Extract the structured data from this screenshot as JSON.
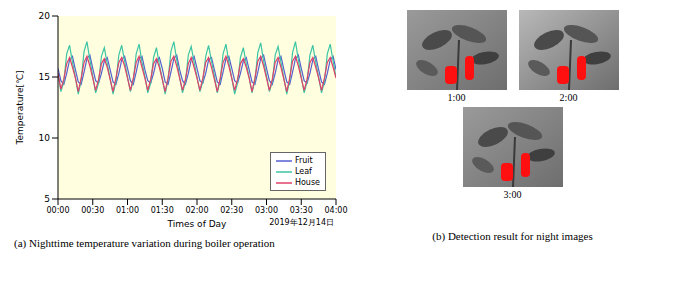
{
  "chart_data": {
    "type": "line",
    "xlabel": "Times of Day",
    "ylabel": "Temperature[℃]",
    "annotation": "2019年12月14日",
    "caption": "(a) Nighttime temperature variation during boiler operation",
    "x": [
      0,
      2.5,
      5,
      7.5,
      10,
      12.5,
      15,
      17.5,
      20,
      22.5,
      25,
      27.5,
      30,
      32.5,
      35,
      37.5,
      40,
      42.5,
      45,
      47.5,
      50,
      52.5,
      55,
      57.5,
      60,
      62.5,
      65,
      67.5,
      70,
      72.5,
      75,
      77.5,
      80,
      82.5,
      85,
      87.5,
      90,
      92.5,
      95,
      97.5,
      100,
      102.5,
      105,
      107.5,
      110,
      112.5,
      115,
      117.5,
      120,
      122.5,
      125,
      127.5,
      130,
      132.5,
      135,
      137.5,
      140,
      142.5,
      145,
      147.5,
      150,
      152.5,
      155,
      157.5,
      160,
      162.5,
      165,
      167.5,
      170,
      172.5,
      175,
      177.5,
      180,
      182.5,
      185,
      187.5,
      190,
      192.5,
      195,
      197.5,
      200,
      202.5,
      205,
      207.5,
      210,
      212.5,
      215,
      217.5,
      220,
      222.5,
      225,
      227.5,
      230,
      232.5,
      235,
      237.5,
      240
    ],
    "series": [
      {
        "name": "Fruit",
        "color": "#5560d0",
        "values": [
          15.7,
          14.7,
          14.4,
          15.3,
          16.4,
          16.7,
          15.6,
          14.6,
          14.4,
          15.4,
          16.5,
          16.8,
          15.7,
          14.7,
          14.5,
          15.3,
          16.3,
          16.6,
          15.6,
          14.6,
          14.4,
          15.3,
          16.4,
          16.7,
          15.7,
          14.7,
          14.4,
          15.4,
          16.5,
          16.7,
          15.6,
          14.7,
          14.5,
          15.3,
          16.3,
          16.6,
          15.7,
          14.6,
          14.4,
          15.4,
          16.5,
          16.8,
          15.6,
          14.7,
          14.4,
          15.3,
          16.4,
          16.7,
          15.7,
          14.7,
          14.5,
          15.3,
          16.4,
          16.6,
          15.6,
          14.6,
          14.4,
          15.4,
          16.5,
          16.7,
          15.7,
          14.7,
          14.5,
          15.3,
          16.3,
          16.6,
          15.6,
          14.6,
          14.4,
          15.4,
          16.5,
          16.8,
          15.7,
          14.7,
          14.4,
          15.3,
          16.4,
          16.7,
          15.6,
          14.6,
          14.4,
          15.4,
          16.5,
          16.8,
          15.7,
          14.7,
          14.5,
          15.3,
          16.4,
          16.7,
          15.6,
          14.6,
          14.4,
          15.3,
          16.4,
          16.7,
          15.6
        ]
      },
      {
        "name": "Leaf",
        "color": "#3cc4a4",
        "values": [
          15.3,
          13.8,
          14.6,
          16.9,
          17.6,
          16.2,
          15.0,
          13.6,
          14.7,
          17.1,
          17.9,
          16.4,
          15.1,
          13.7,
          14.5,
          16.7,
          17.4,
          16.1,
          14.9,
          13.6,
          14.6,
          16.8,
          17.6,
          16.3,
          15.0,
          13.8,
          14.7,
          16.9,
          17.7,
          16.2,
          15.1,
          13.7,
          14.5,
          16.6,
          17.4,
          16.0,
          14.9,
          13.6,
          14.8,
          17.1,
          17.9,
          16.4,
          15.0,
          13.7,
          14.6,
          16.8,
          17.5,
          16.2,
          15.0,
          13.8,
          14.6,
          16.7,
          17.6,
          16.3,
          15.1,
          13.7,
          14.7,
          16.9,
          17.7,
          16.2,
          14.9,
          13.6,
          14.5,
          16.6,
          17.4,
          16.1,
          15.0,
          13.7,
          14.7,
          17.0,
          17.8,
          16.3,
          15.1,
          13.8,
          14.6,
          16.8,
          17.5,
          16.2,
          14.9,
          13.6,
          14.7,
          17.0,
          17.9,
          16.4,
          15.0,
          13.7,
          14.6,
          16.8,
          17.6,
          16.2,
          15.0,
          13.7,
          14.6,
          16.9,
          17.7,
          16.3,
          15.0
        ]
      },
      {
        "name": "House",
        "color": "#e0406a",
        "values": [
          15.3,
          14.0,
          14.8,
          16.1,
          16.6,
          15.8,
          14.9,
          13.8,
          14.9,
          16.2,
          16.7,
          15.9,
          14.9,
          13.9,
          14.8,
          16.1,
          16.5,
          15.8,
          14.8,
          13.8,
          14.9,
          16.2,
          16.6,
          15.9,
          14.9,
          13.9,
          14.9,
          16.2,
          16.7,
          15.8,
          14.9,
          13.9,
          14.8,
          16.1,
          16.5,
          15.8,
          14.8,
          13.8,
          14.9,
          16.3,
          16.7,
          15.9,
          14.9,
          13.9,
          14.8,
          16.1,
          16.6,
          15.8,
          14.9,
          13.9,
          14.9,
          16.2,
          16.6,
          15.8,
          14.8,
          13.8,
          14.9,
          16.2,
          16.7,
          15.9,
          14.9,
          13.9,
          14.8,
          16.1,
          16.5,
          15.8,
          14.9,
          13.8,
          14.9,
          16.3,
          16.7,
          15.9,
          14.9,
          13.9,
          14.8,
          16.2,
          16.6,
          15.8,
          14.8,
          13.8,
          14.9,
          16.3,
          16.7,
          15.9,
          14.9,
          13.9,
          14.8,
          16.2,
          16.6,
          15.8,
          14.9,
          13.9,
          14.9,
          16.2,
          16.6,
          15.8,
          14.9
        ]
      }
    ],
    "xlim": [
      0,
      240
    ],
    "xticks": [
      {
        "value": 0,
        "label": "00:00"
      },
      {
        "value": 30,
        "label": "00:30"
      },
      {
        "value": 60,
        "label": "01:00"
      },
      {
        "value": 90,
        "label": "01:30"
      },
      {
        "value": 120,
        "label": "02:00"
      },
      {
        "value": 150,
        "label": "02:30"
      },
      {
        "value": 180,
        "label": "03:00"
      },
      {
        "value": 210,
        "label": "03:30"
      },
      {
        "value": 240,
        "label": "04:00"
      }
    ],
    "ylim": [
      5,
      20
    ],
    "yticks": [
      5,
      10,
      15,
      20
    ],
    "grid": false,
    "legend": "lower right"
  },
  "panel_b": {
    "caption": "(b) Detection result for night images",
    "images": [
      {
        "label": "1:00"
      },
      {
        "label": "2:00"
      },
      {
        "label": "3:00"
      }
    ]
  }
}
